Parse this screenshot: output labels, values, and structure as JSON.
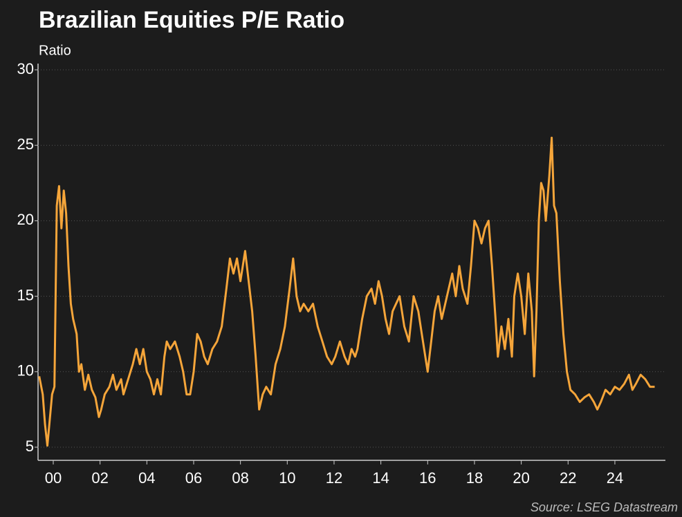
{
  "chart_data": {
    "type": "line",
    "title": "Brazilian Equities P/E Ratio",
    "subtitle": "Ratio",
    "source": "Source: LSEG Datastream",
    "color": "#f5a53a",
    "grid": true,
    "xlim": [
      1999.35,
      2026.1
    ],
    "ylim": [
      5,
      30
    ],
    "yticks": [
      5,
      10,
      15,
      20,
      25,
      30
    ],
    "xticks": [
      {
        "value": 2000,
        "label": "00"
      },
      {
        "value": 2002,
        "label": "02"
      },
      {
        "value": 2004,
        "label": "04"
      },
      {
        "value": 2006,
        "label": "06"
      },
      {
        "value": 2008,
        "label": "08"
      },
      {
        "value": 2010,
        "label": "10"
      },
      {
        "value": 2012,
        "label": "12"
      },
      {
        "value": 2014,
        "label": "14"
      },
      {
        "value": 2016,
        "label": "16"
      },
      {
        "value": 2018,
        "label": "18"
      },
      {
        "value": 2020,
        "label": "20"
      },
      {
        "value": 2022,
        "label": "22"
      },
      {
        "value": 2024,
        "label": "24"
      }
    ],
    "x": [
      1999.4,
      1999.55,
      1999.65,
      1999.75,
      1999.85,
      1999.95,
      2000.05,
      2000.15,
      2000.25,
      2000.35,
      2000.45,
      2000.55,
      2000.65,
      2000.75,
      2000.85,
      2001.0,
      2001.1,
      2001.2,
      2001.35,
      2001.5,
      2001.65,
      2001.8,
      2001.95,
      2002.05,
      2002.2,
      2002.4,
      2002.55,
      2002.7,
      2002.9,
      2003.0,
      2003.2,
      2003.4,
      2003.55,
      2003.7,
      2003.85,
      2004.0,
      2004.15,
      2004.3,
      2004.45,
      2004.6,
      2004.75,
      2004.85,
      2005.0,
      2005.2,
      2005.4,
      2005.55,
      2005.7,
      2005.85,
      2006.0,
      2006.15,
      2006.3,
      2006.45,
      2006.6,
      2006.8,
      2007.0,
      2007.2,
      2007.4,
      2007.55,
      2007.7,
      2007.85,
      2008.0,
      2008.2,
      2008.35,
      2008.5,
      2008.65,
      2008.8,
      2008.95,
      2009.1,
      2009.3,
      2009.5,
      2009.7,
      2009.9,
      2010.1,
      2010.25,
      2010.4,
      2010.55,
      2010.7,
      2010.9,
      2011.1,
      2011.3,
      2011.5,
      2011.7,
      2011.9,
      2012.05,
      2012.25,
      2012.45,
      2012.6,
      2012.75,
      2012.9,
      2013.0,
      2013.2,
      2013.4,
      2013.6,
      2013.75,
      2013.9,
      2014.05,
      2014.2,
      2014.35,
      2014.5,
      2014.65,
      2014.8,
      2015.0,
      2015.2,
      2015.4,
      2015.6,
      2015.75,
      2015.9,
      2016.0,
      2016.15,
      2016.3,
      2016.45,
      2016.6,
      2016.75,
      2016.9,
      2017.05,
      2017.2,
      2017.35,
      2017.5,
      2017.7,
      2017.85,
      2018.0,
      2018.15,
      2018.3,
      2018.45,
      2018.6,
      2018.75,
      2018.9,
      2019.0,
      2019.15,
      2019.3,
      2019.45,
      2019.6,
      2019.7,
      2019.85,
      2020.0,
      2020.15,
      2020.3,
      2020.45,
      2020.55,
      2020.65,
      2020.75,
      2020.85,
      2020.95,
      2021.05,
      2021.2,
      2021.3,
      2021.4,
      2021.5,
      2021.65,
      2021.8,
      2021.95,
      2022.1,
      2022.3,
      2022.5,
      2022.7,
      2022.9,
      2023.1,
      2023.25,
      2023.4,
      2023.6,
      2023.8,
      2024.0,
      2024.2,
      2024.4,
      2024.6,
      2024.75,
      2024.9,
      2025.1,
      2025.3,
      2025.5,
      2025.7
    ],
    "values": [
      9.7,
      8.5,
      6.5,
      5.1,
      6.8,
      8.5,
      9.0,
      21.0,
      22.3,
      19.5,
      22.0,
      20.5,
      17.0,
      14.5,
      13.5,
      12.5,
      10.0,
      10.5,
      8.8,
      9.8,
      8.8,
      8.3,
      7.0,
      7.5,
      8.5,
      9.0,
      9.8,
      8.8,
      9.5,
      8.5,
      9.5,
      10.5,
      11.5,
      10.5,
      11.5,
      10.0,
      9.5,
      8.5,
      9.5,
      8.5,
      11.0,
      12.0,
      11.5,
      12.0,
      11.0,
      10.0,
      8.5,
      8.5,
      10.0,
      12.5,
      12.0,
      11.0,
      10.5,
      11.5,
      12.0,
      13.0,
      15.5,
      17.5,
      16.5,
      17.5,
      16.0,
      18.0,
      16.0,
      14.0,
      11.0,
      7.5,
      8.5,
      9.0,
      8.5,
      10.5,
      11.5,
      13.0,
      15.5,
      17.5,
      15.0,
      14.0,
      14.5,
      14.0,
      14.5,
      13.0,
      12.0,
      11.0,
      10.5,
      11.0,
      12.0,
      11.0,
      10.5,
      11.5,
      11.0,
      11.5,
      13.5,
      15.0,
      15.5,
      14.5,
      16.0,
      15.0,
      13.5,
      12.5,
      14.0,
      14.5,
      15.0,
      13.0,
      12.0,
      15.0,
      14.0,
      12.5,
      11.0,
      10.0,
      12.0,
      14.0,
      15.0,
      13.5,
      14.5,
      15.5,
      16.5,
      15.0,
      17.0,
      15.5,
      14.5,
      17.0,
      20.0,
      19.5,
      18.5,
      19.5,
      20.0,
      17.0,
      13.5,
      11.0,
      13.0,
      11.5,
      13.5,
      11.0,
      15.0,
      16.5,
      15.0,
      12.5,
      16.5,
      14.0,
      9.7,
      14.0,
      20.0,
      22.5,
      22.0,
      20.0,
      23.0,
      25.5,
      21.0,
      20.5,
      16.0,
      12.5,
      10.0,
      8.8,
      8.5,
      8.0,
      8.3,
      8.5,
      8.0,
      7.5,
      8.0,
      8.8,
      8.5,
      9.0,
      8.8,
      9.2,
      9.8,
      8.8,
      9.2,
      9.8,
      9.5,
      9.0,
      9.0
    ]
  }
}
